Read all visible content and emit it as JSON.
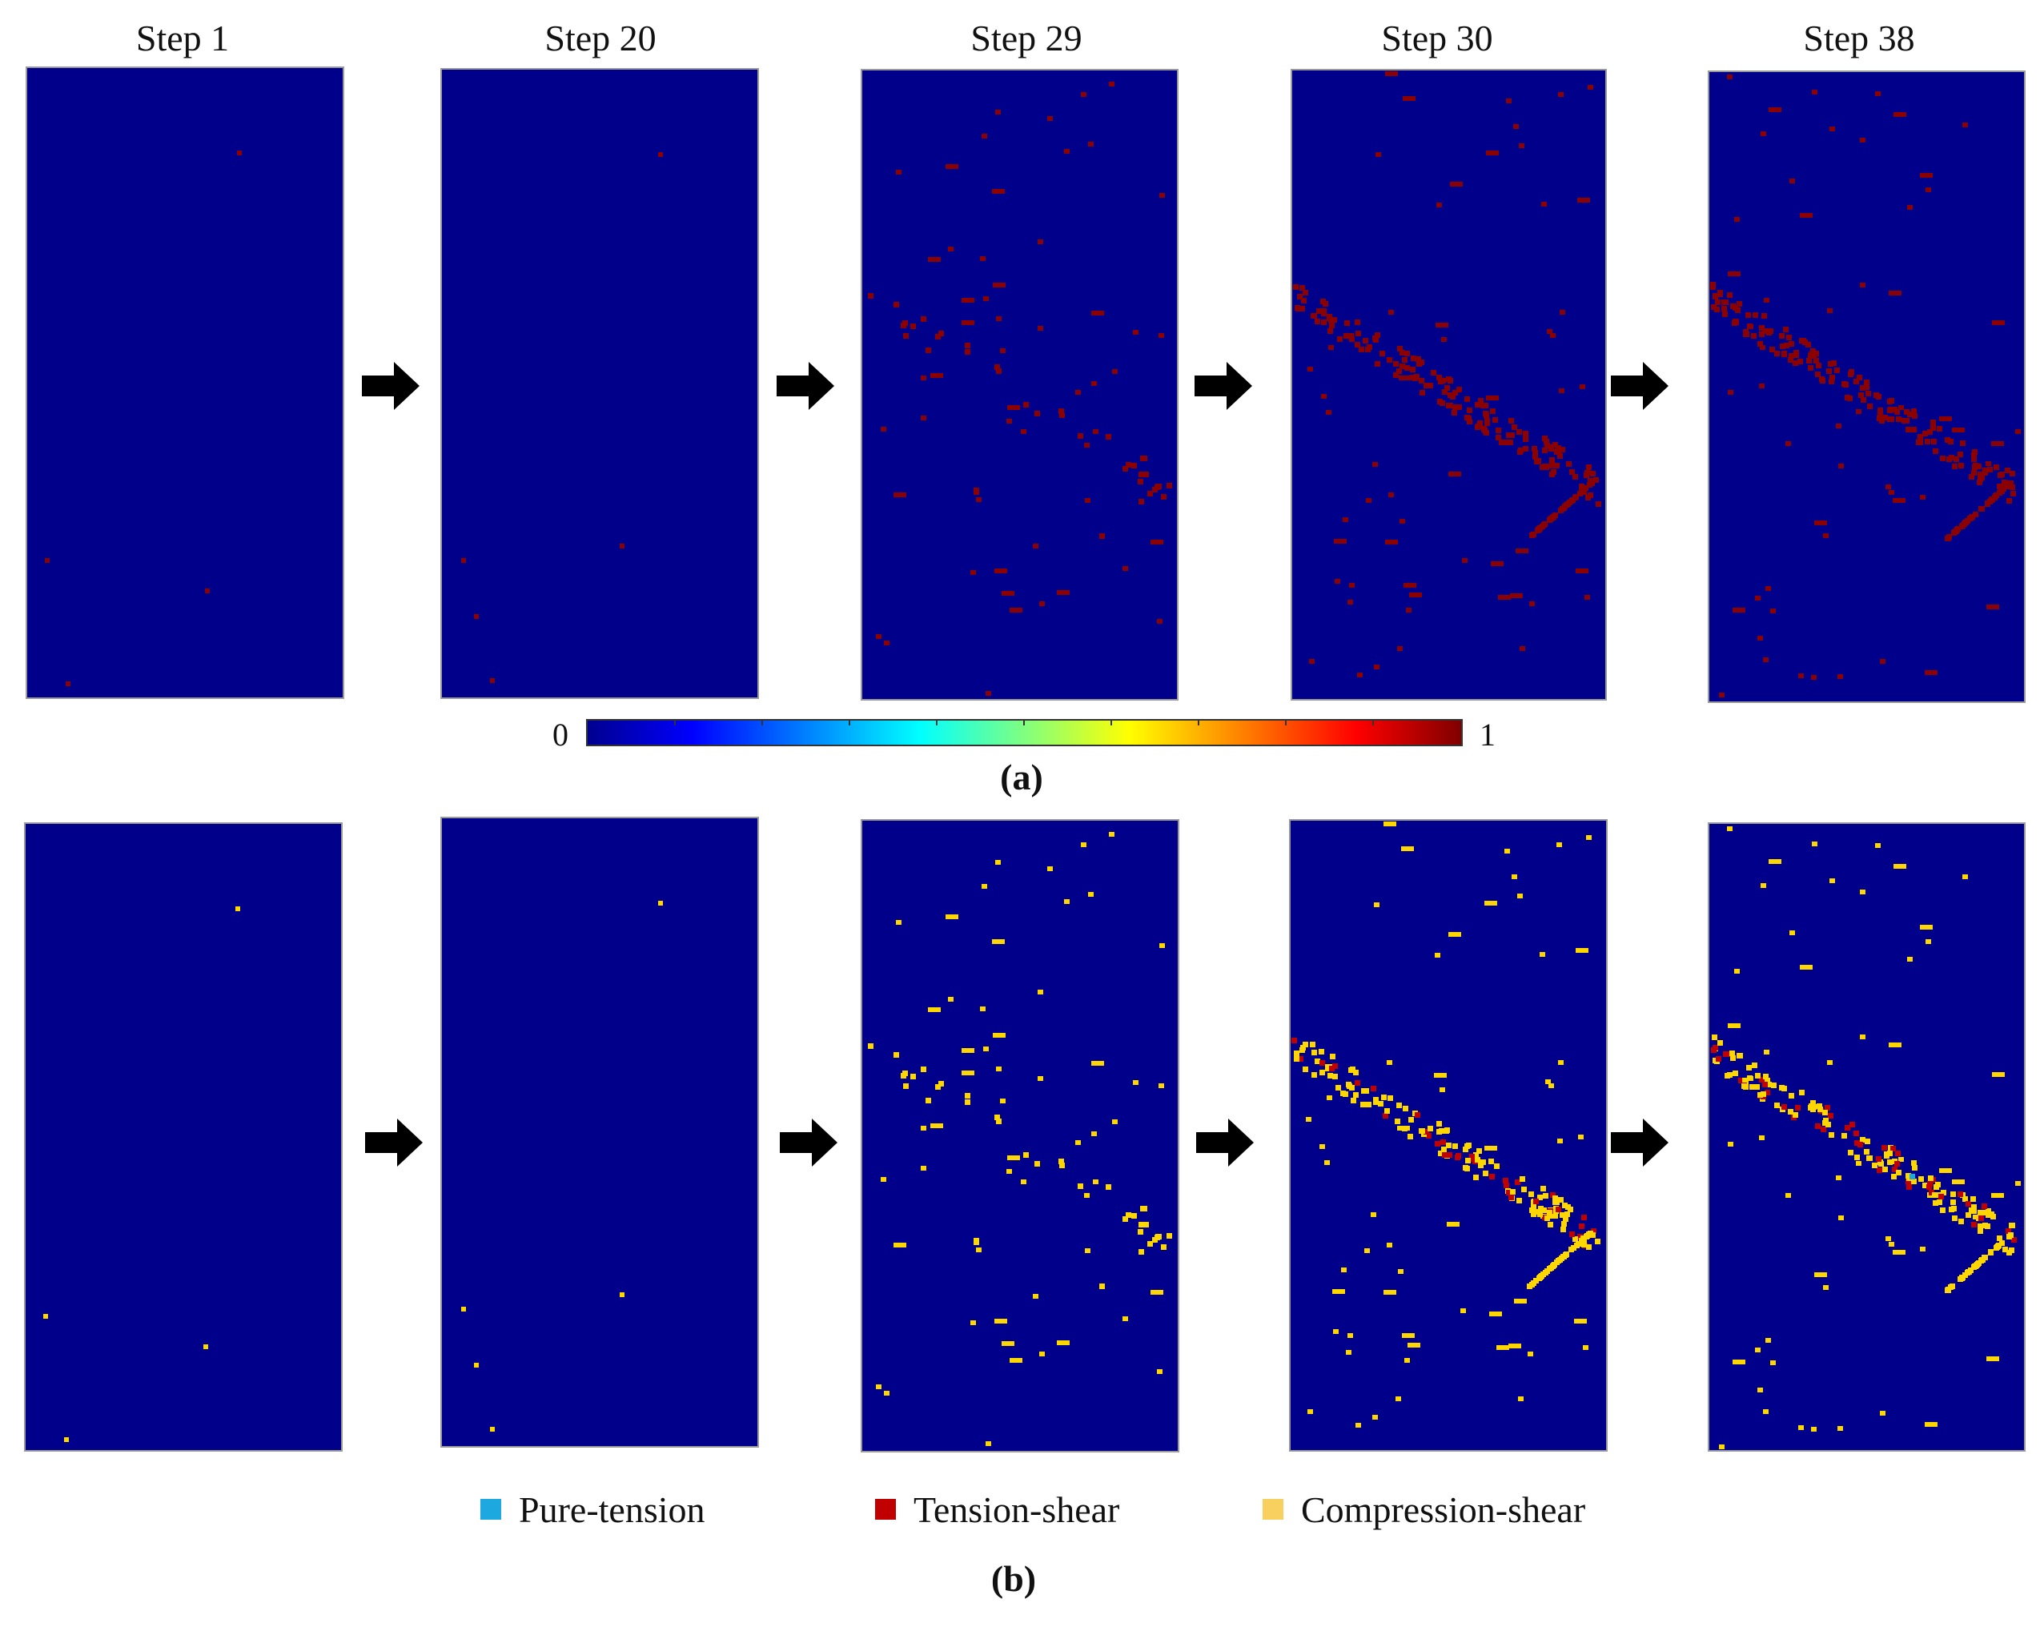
{
  "steps": [
    "Step 1",
    "Step 20",
    "Step 29",
    "Step 30",
    "Step 38"
  ],
  "colorbar": {
    "min_label": "0",
    "max_label": "1"
  },
  "subfigures": {
    "a": "(a)",
    "b": "(b)"
  },
  "legend": [
    {
      "label": "Pure-tension",
      "color": "#1ea8e0"
    },
    {
      "label": "Tension-shear",
      "color": "#c00000"
    },
    {
      "label": "Compression-shear",
      "color": "#f8d060"
    }
  ],
  "colors": {
    "background": "#00008b",
    "damage_a": "#8b0000",
    "damage_b": "#ffd700"
  }
}
